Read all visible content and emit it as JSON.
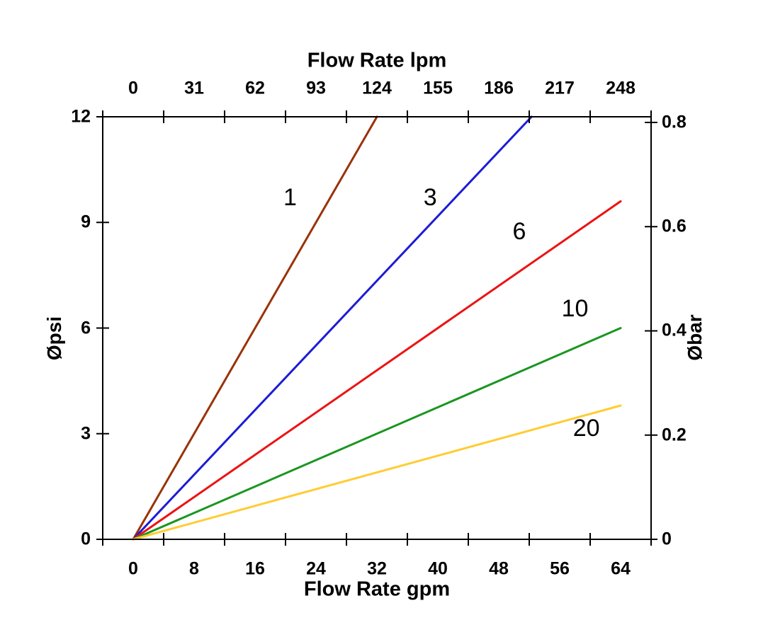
{
  "chart_data": {
    "type": "line",
    "title_top": "Flow Rate lpm",
    "title_bottom": "Flow Rate gpm",
    "ylabel_left": "Øpsi",
    "ylabel_right": "Øbar",
    "background": "#ffffff",
    "axis_color": "#000000",
    "grid": false,
    "legend": "none (inline curve labels)",
    "x_bottom": {
      "label": "Flow Rate gpm",
      "ticks": [
        0,
        8,
        16,
        24,
        32,
        40,
        48,
        56,
        64
      ],
      "range": [
        0,
        64
      ]
    },
    "x_top": {
      "label": "Flow Rate lpm",
      "ticks": [
        0,
        31,
        62,
        93,
        124,
        155,
        186,
        217,
        248
      ],
      "range": [
        0,
        248
      ]
    },
    "y_left": {
      "label": "Øpsi",
      "ticks": [
        0,
        3,
        6,
        9,
        12
      ],
      "range": [
        0,
        12
      ]
    },
    "y_right": {
      "label": "Øbar",
      "ticks": [
        0,
        0.2,
        0.4,
        0.6,
        0.8
      ],
      "range": [
        0,
        0.8
      ]
    },
    "series": [
      {
        "label": "1",
        "color": "#993307",
        "points": [
          [
            0,
            0
          ],
          [
            32,
            12
          ]
        ],
        "label_pos": [
          20.6,
          9.7
        ]
      },
      {
        "label": "3",
        "color": "#1c1cd6",
        "points": [
          [
            0,
            0
          ],
          [
            52.3,
            12
          ]
        ],
        "label_pos": [
          39.0,
          9.7
        ]
      },
      {
        "label": "6",
        "color": "#ec1313",
        "points": [
          [
            0,
            0
          ],
          [
            64,
            9.6
          ]
        ],
        "label_pos": [
          50.7,
          8.75
        ]
      },
      {
        "label": "10",
        "color": "#1a9622",
        "points": [
          [
            0,
            0
          ],
          [
            64,
            6.0
          ]
        ],
        "label_pos": [
          58.0,
          6.55
        ]
      },
      {
        "label": "20",
        "color": "#ffcc33",
        "points": [
          [
            0,
            0
          ],
          [
            64,
            3.8
          ]
        ],
        "label_pos": [
          59.5,
          3.15
        ]
      }
    ]
  }
}
